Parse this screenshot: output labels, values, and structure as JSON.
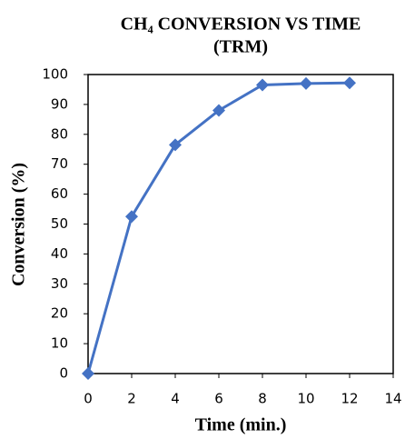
{
  "chart_data": {
    "type": "line",
    "title": [
      "CH₄ CONVERSION VS TIME",
      "(TRM)"
    ],
    "x_label": "Time (min.)",
    "y_label": "Conversion (%)",
    "x": [
      0,
      2,
      4,
      6,
      8,
      10,
      12
    ],
    "series": [
      {
        "color": "#4472c4",
        "values": [
          0,
          52.5,
          76.5,
          88,
          96.5,
          97,
          97.2
        ]
      }
    ],
    "xlim": [
      0,
      14
    ],
    "xticks": [
      0,
      2,
      4,
      6,
      8,
      10,
      12,
      14
    ],
    "ylim": [
      0,
      100
    ],
    "yticks": [
      0,
      10,
      20,
      30,
      40,
      50,
      60,
      70,
      80,
      90,
      100
    ],
    "grid": false
  }
}
